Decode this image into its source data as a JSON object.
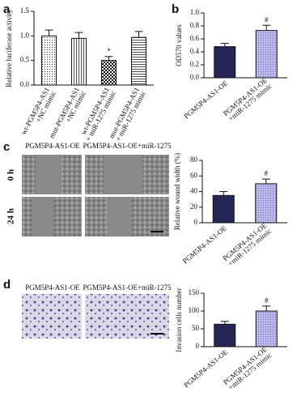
{
  "panel_labels": [
    "a",
    "b",
    "c",
    "d"
  ],
  "image_labels": {
    "c": {
      "columns": [
        "PGM5P4-AS1-OE",
        "PGM5P4-AS1-OE+miR-1275"
      ],
      "rows": [
        "0 h",
        "24 h"
      ]
    },
    "d": {
      "columns": [
        "PGM5P4-AS1-OE",
        "PGM5P4-AS1-OE+miR-1275"
      ]
    }
  },
  "chart_data": [
    {
      "type": "bar",
      "y_label": "Relative luciferase activity",
      "categories": [
        [
          "wt-PGM5P4-AS1",
          "+NC mimic"
        ],
        [
          "mut-PGM5P4-AS1",
          "+NC mimic"
        ],
        [
          "wt-PGM5P4-AS1",
          "+ miR-1275 mimic"
        ],
        [
          "mut-PGM5P4-AS1",
          "+ miR-1275 mimic"
        ]
      ],
      "values": [
        1.0,
        0.95,
        0.5,
        0.97
      ],
      "errors": [
        0.12,
        0.12,
        0.08,
        0.12
      ],
      "colors": [
        "#ffffff",
        "#ffffff",
        "#ffffff",
        "#ffffff"
      ],
      "patterns": [
        "dots",
        "vertical",
        "checker",
        "horizontal"
      ],
      "annotations": [
        {
          "index": 2,
          "text": "*"
        }
      ],
      "ylim": [
        0,
        1.5
      ],
      "yticks": [
        {
          "value": 0,
          "label": "0.0"
        },
        0.5,
        {
          "value": 1,
          "label": "1.0"
        },
        1.5
      ]
    },
    {
      "type": "bar",
      "y_label": "OD570 values",
      "categories": [
        [
          "PGM5P4-AS1-OE"
        ],
        [
          "PGM5P4-AS1-OE",
          "+miR-1275 mimic"
        ]
      ],
      "values": [
        0.48,
        0.73
      ],
      "errors": [
        0.05,
        0.08
      ],
      "colors": [
        "#2b2f6e",
        "#b9b8f2"
      ],
      "patterns": [
        "checker",
        "dots"
      ],
      "annotations": [
        {
          "index": 1,
          "text": "#"
        }
      ],
      "ylim": [
        0,
        1.0
      ],
      "yticks": [
        {
          "value": 0,
          "label": "0.0"
        },
        0.2,
        0.4,
        0.6,
        0.8,
        {
          "value": 1,
          "label": "1.0"
        }
      ]
    },
    {
      "type": "bar",
      "y_label": "Relative wound width (%)",
      "categories": [
        [
          "PGM5P4-AS1-OE"
        ],
        [
          "PGM5P4-AS1-OE",
          "+miR-1275 mimic"
        ]
      ],
      "values": [
        35,
        50
      ],
      "errors": [
        5,
        6
      ],
      "colors": [
        "#2b2f6e",
        "#b9b8f2"
      ],
      "patterns": [
        "checker",
        "dots"
      ],
      "annotations": [
        {
          "index": 1,
          "text": "#"
        }
      ],
      "ylim": [
        0,
        80
      ],
      "yticks": [
        0,
        20,
        40,
        60,
        80
      ]
    },
    {
      "type": "bar",
      "y_label": "Invasion cells number",
      "categories": [
        [
          "PGM5P4-AS1-OE"
        ],
        [
          "PGM5P4-AS1-OE",
          "+miR-1275 mimic"
        ]
      ],
      "values": [
        63,
        100
      ],
      "errors": [
        8,
        14
      ],
      "colors": [
        "#2b2f6e",
        "#b9b8f2"
      ],
      "patterns": [
        "checker",
        "dots"
      ],
      "annotations": [
        {
          "index": 1,
          "text": "#"
        }
      ],
      "ylim": [
        0,
        150
      ],
      "yticks": [
        0,
        50,
        100,
        150
      ]
    }
  ]
}
